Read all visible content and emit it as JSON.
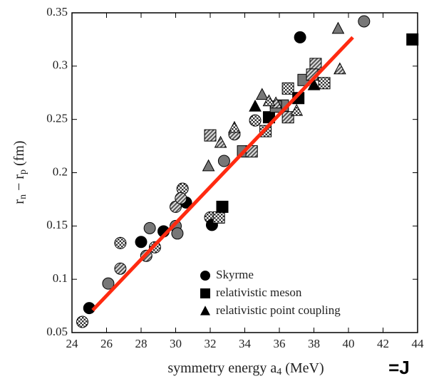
{
  "chart_data": {
    "type": "scatter",
    "x_label": [
      "symmetry energy a",
      "4",
      " (MeV)"
    ],
    "y_label": [
      "r",
      "n",
      " − r",
      "p",
      " (fm)"
    ],
    "annotation": "=J",
    "xlim": [
      24,
      44
    ],
    "xticks": [
      24,
      26,
      28,
      30,
      32,
      34,
      36,
      38,
      40,
      42,
      44
    ],
    "ylim": [
      0.05,
      0.35
    ],
    "yticks": [
      0.05,
      0.1,
      0.15,
      0.2,
      0.25,
      0.3,
      0.35
    ],
    "fit_line": {
      "x": [
        25.2,
        40.25
      ],
      "y": [
        0.071,
        0.327
      ],
      "color": "#ff2a10"
    },
    "series": [
      {
        "name": "Skyrme",
        "marker": "circle",
        "color": "#000000",
        "x": [
          24.6,
          25.0,
          26.1,
          26.8,
          26.8,
          28.0,
          28.5,
          28.3,
          28.8,
          29.3,
          30.0,
          30.0,
          30.4,
          30.6,
          30.1,
          30.3,
          32.0,
          32.1,
          32.8,
          33.4,
          34.6,
          37.2,
          40.9
        ],
        "values": [
          0.06,
          0.073,
          0.096,
          0.11,
          0.134,
          0.135,
          0.148,
          0.122,
          0.13,
          0.145,
          0.15,
          0.168,
          0.185,
          0.172,
          0.143,
          0.176,
          0.158,
          0.151,
          0.211,
          0.236,
          0.249,
          0.327,
          0.342
        ]
      },
      {
        "name": "relativistic meson",
        "marker": "square",
        "color": "#000000",
        "x": [
          32.0,
          32.5,
          32.7,
          33.9,
          34.4,
          35.2,
          35.4,
          36.2,
          36.5,
          36.5,
          37.1,
          37.4,
          38.1,
          38.6,
          43.7,
          35.8,
          37.9
        ],
        "values": [
          0.235,
          0.158,
          0.168,
          0.22,
          0.22,
          0.239,
          0.252,
          0.263,
          0.252,
          0.279,
          0.27,
          0.287,
          0.302,
          0.284,
          0.325,
          0.262,
          0.292
        ]
      },
      {
        "name": "relativistic point coupling",
        "marker": "triangle",
        "color": "#000000",
        "x": [
          31.9,
          32.6,
          33.4,
          34.6,
          35.0,
          35.8,
          37.0,
          38.0,
          39.4,
          39.5,
          35.4
        ],
        "values": [
          0.206,
          0.228,
          0.242,
          0.262,
          0.273,
          0.265,
          0.258,
          0.282,
          0.335,
          0.297,
          0.267
        ]
      }
    ]
  }
}
